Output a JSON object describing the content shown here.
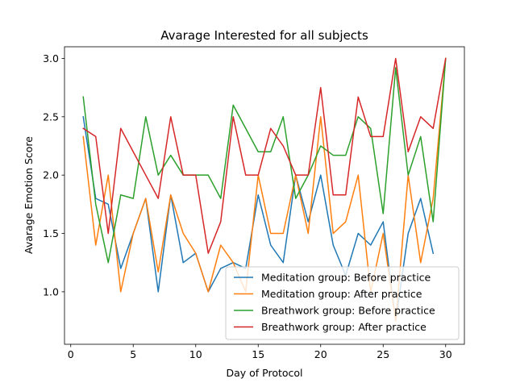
{
  "chart_data": {
    "type": "line",
    "title": "Avarage Interested for all subjects",
    "xlabel": "Day of Protocol",
    "ylabel": "Avarage Emotion Score",
    "xlim": [
      -0.5,
      31.5
    ],
    "ylim": [
      0.55,
      3.1
    ],
    "xticks": [
      0,
      5,
      10,
      15,
      20,
      25,
      30
    ],
    "yticks": [
      1.0,
      1.5,
      2.0,
      2.5,
      3.0
    ],
    "legend_position": "lower right",
    "grid": false,
    "x": [
      1,
      2,
      3,
      4,
      5,
      6,
      7,
      8,
      9,
      10,
      11,
      12,
      13,
      14,
      15,
      16,
      17,
      18,
      19,
      20,
      21,
      22,
      23,
      24,
      25,
      26,
      27,
      28,
      29,
      30
    ],
    "series": [
      {
        "name": "Meditation group: Before practice",
        "color": "#1f77b4",
        "values": [
          2.5,
          1.8,
          1.75,
          1.2,
          1.5,
          1.8,
          1.0,
          1.83,
          1.25,
          1.33,
          1.0,
          1.2,
          1.25,
          1.2,
          1.83,
          1.4,
          1.25,
          2.0,
          1.6,
          2.0,
          1.4,
          1.14,
          1.5,
          1.4,
          1.6,
          0.75,
          1.5,
          1.8,
          1.33,
          null
        ]
      },
      {
        "name": "Meditation group: After practice",
        "color": "#ff7f0e",
        "values": [
          2.33,
          1.4,
          2.0,
          1.0,
          1.5,
          1.8,
          1.17,
          1.83,
          1.5,
          1.33,
          1.0,
          1.4,
          1.25,
          1.0,
          2.0,
          1.5,
          1.5,
          2.0,
          1.5,
          2.5,
          1.5,
          1.6,
          2.0,
          1.0,
          1.5,
          0.75,
          2.0,
          1.25,
          1.8,
          3.0
        ]
      },
      {
        "name": "Breathwork group: Before practice",
        "color": "#2ca02c",
        "values": [
          2.67,
          1.75,
          1.25,
          1.83,
          1.8,
          2.5,
          2.0,
          2.17,
          2.0,
          2.0,
          2.0,
          1.8,
          2.6,
          2.4,
          2.2,
          2.2,
          2.5,
          1.8,
          2.0,
          2.25,
          2.17,
          2.17,
          2.5,
          2.4,
          1.67,
          2.92,
          2.0,
          2.33,
          1.6,
          3.0
        ]
      },
      {
        "name": "Breathwork group: After practice",
        "color": "#d62728",
        "values": [
          2.4,
          2.33,
          1.5,
          2.4,
          2.2,
          2.0,
          1.8,
          2.5,
          2.0,
          2.0,
          1.33,
          1.6,
          2.5,
          2.0,
          2.0,
          2.4,
          2.25,
          2.0,
          2.0,
          2.75,
          1.83,
          1.83,
          2.67,
          2.33,
          2.33,
          3.0,
          2.2,
          2.5,
          2.4,
          3.0
        ]
      }
    ]
  }
}
